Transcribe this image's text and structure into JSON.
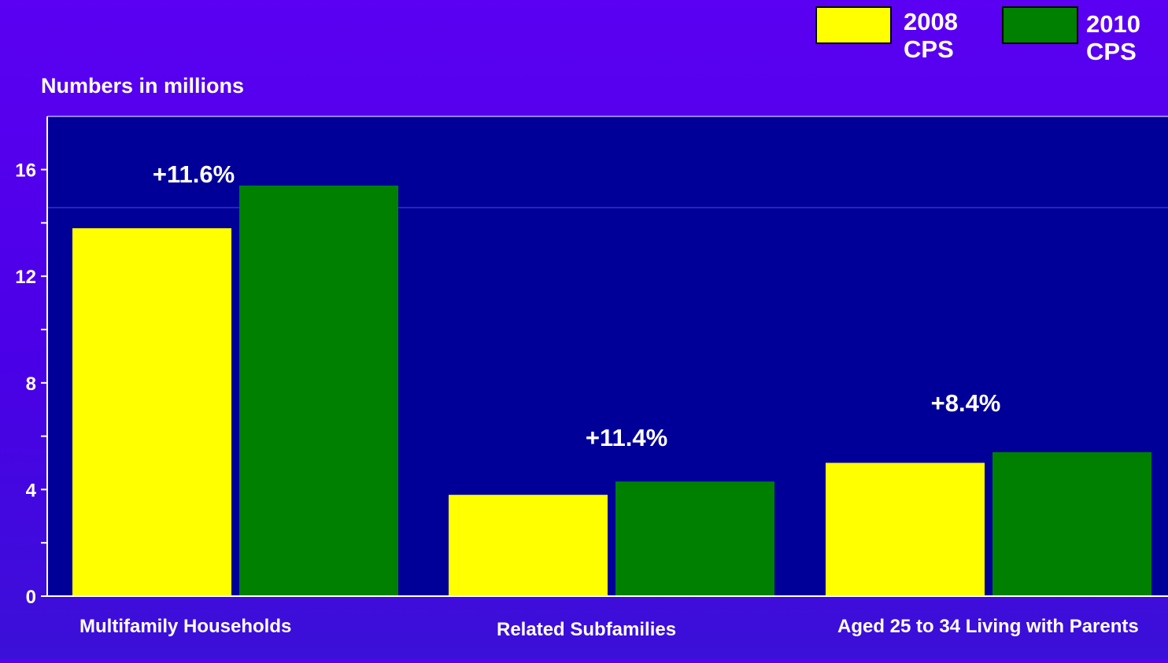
{
  "chart_data": {
    "type": "bar",
    "title": "",
    "ylabel": "Numbers in millions",
    "xlabel": "",
    "ylim": [
      0,
      18
    ],
    "yticks": [
      0,
      4,
      8,
      12,
      16
    ],
    "categories": [
      "Multifamily Households",
      "Related  Subfamilies",
      "Aged 25 to 34 Living with Parents"
    ],
    "series": [
      {
        "name": "2008 CPS",
        "color": "#ffff00",
        "values": [
          13.8,
          3.8,
          5.0
        ]
      },
      {
        "name": "2010 CPS",
        "color": "#008000",
        "values": [
          15.4,
          4.3,
          5.4
        ]
      }
    ],
    "annotations": [
      "+11.6%",
      "+11.4%",
      "+8.4%"
    ],
    "grid": false,
    "legend_position": "top-right",
    "plot_background": "#000099"
  }
}
